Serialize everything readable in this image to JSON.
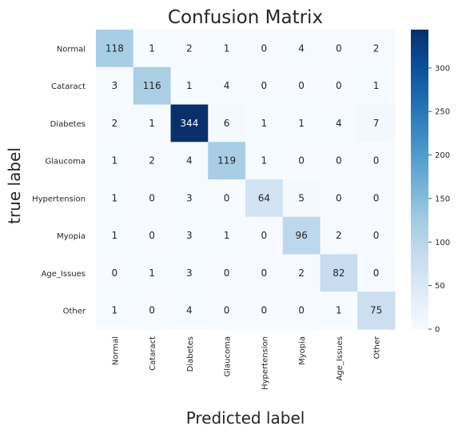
{
  "chart_data": {
    "type": "heatmap",
    "title": "Confusion Matrix",
    "xlabel": "Predicted label",
    "ylabel": "true label",
    "x_categories": [
      "Normal",
      "Cataract",
      "Diabetes",
      "Glaucoma",
      "Hypertension",
      "Myopia",
      "Age_Issues",
      "Other"
    ],
    "y_categories": [
      "Normal",
      "Cataract",
      "Diabetes",
      "Glaucoma",
      "Hypertension",
      "Myopia",
      "Age_Issues",
      "Other"
    ],
    "matrix": [
      [
        118,
        1,
        2,
        1,
        0,
        4,
        0,
        2
      ],
      [
        3,
        116,
        1,
        4,
        0,
        0,
        0,
        1
      ],
      [
        2,
        1,
        344,
        6,
        1,
        1,
        4,
        7
      ],
      [
        1,
        2,
        4,
        119,
        1,
        0,
        0,
        0
      ],
      [
        1,
        0,
        3,
        0,
        64,
        5,
        0,
        0
      ],
      [
        1,
        0,
        3,
        1,
        0,
        96,
        2,
        0
      ],
      [
        0,
        1,
        3,
        0,
        0,
        2,
        82,
        0
      ],
      [
        1,
        0,
        4,
        0,
        0,
        0,
        1,
        75
      ]
    ],
    "colormap": "Blues",
    "colorbar": {
      "min": 0,
      "max": 344,
      "ticks": [
        0,
        50,
        100,
        150,
        200,
        250,
        300
      ]
    },
    "colors": {
      "low": "#f7fbff",
      "high": "#08306b",
      "text_dark": "#262626",
      "text_light": "#ffffff"
    }
  }
}
